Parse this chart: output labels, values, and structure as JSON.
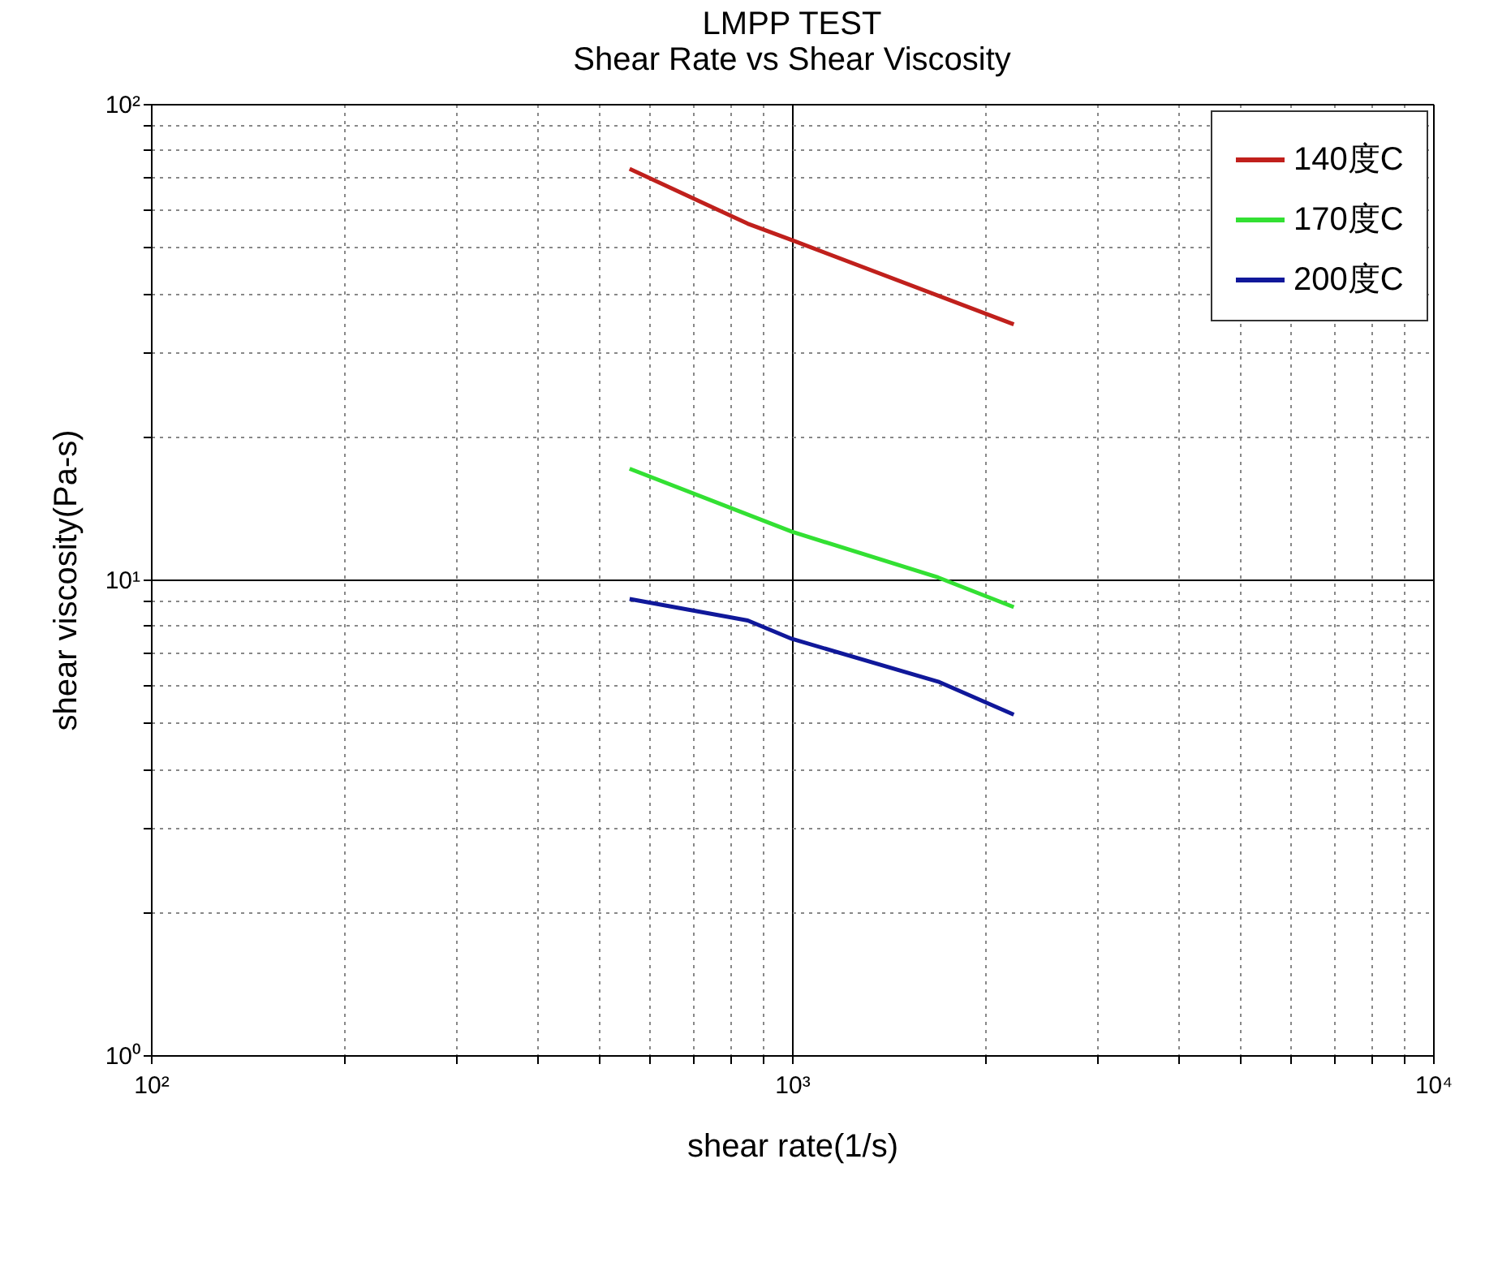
{
  "chart_data": {
    "type": "line",
    "title": [
      "LMPP TEST",
      "Shear Rate vs Shear Viscosity"
    ],
    "xlabel": "shear rate(1/s)",
    "ylabel": "shear viscosity(Pa-s)",
    "log": "xy",
    "grid": true,
    "legend": "top right",
    "line_style": "solid",
    "marker": "none",
    "xlim": [
      100,
      10000
    ],
    "ylim": [
      1,
      100
    ],
    "xticks": [
      {
        "value": 100,
        "label": "10²"
      },
      {
        "value": 200,
        "label": null
      },
      {
        "value": 300,
        "label": null
      },
      {
        "value": 400,
        "label": null
      },
      {
        "value": 500,
        "label": null
      },
      {
        "value": 600,
        "label": null
      },
      {
        "value": 700,
        "label": null
      },
      {
        "value": 800,
        "label": null
      },
      {
        "value": 900,
        "label": null
      },
      {
        "value": 1000,
        "label": "10³"
      },
      {
        "value": 2000,
        "label": null
      },
      {
        "value": 3000,
        "label": null
      },
      {
        "value": 4000,
        "label": null
      },
      {
        "value": 5000,
        "label": null
      },
      {
        "value": 6000,
        "label": null
      },
      {
        "value": 7000,
        "label": null
      },
      {
        "value": 8000,
        "label": null
      },
      {
        "value": 9000,
        "label": null
      },
      {
        "value": 10000,
        "label": "10⁴"
      }
    ],
    "yticks": [
      {
        "value": 1,
        "label": "10⁰"
      },
      {
        "value": 2,
        "label": null
      },
      {
        "value": 3,
        "label": null
      },
      {
        "value": 4,
        "label": null
      },
      {
        "value": 5,
        "label": null
      },
      {
        "value": 6,
        "label": null
      },
      {
        "value": 7,
        "label": null
      },
      {
        "value": 8,
        "label": null
      },
      {
        "value": 9,
        "label": null
      },
      {
        "value": 10,
        "label": "10¹"
      },
      {
        "value": 20,
        "label": null
      },
      {
        "value": 30,
        "label": null
      },
      {
        "value": 40,
        "label": null
      },
      {
        "value": 50,
        "label": null
      },
      {
        "value": 60,
        "label": null
      },
      {
        "value": 70,
        "label": null
      },
      {
        "value": 80,
        "label": null
      },
      {
        "value": 90,
        "label": null
      },
      {
        "value": 100,
        "label": "10²"
      }
    ],
    "series": [
      {
        "name": "140度C",
        "color": "#c0201c",
        "x": [
          558,
          853,
          1000,
          2218
        ],
        "values": [
          73,
          56,
          51.7,
          34.4
        ]
      },
      {
        "name": "170度C",
        "color": "#33e033",
        "x": [
          558,
          1000,
          1690,
          2218
        ],
        "values": [
          17.1,
          12.6,
          10.1,
          8.75
        ]
      },
      {
        "name": "200度C",
        "color": "#10189a",
        "x": [
          558,
          853,
          1000,
          1690,
          2218
        ],
        "values": [
          9.1,
          8.2,
          7.5,
          6.1,
          5.2
        ]
      }
    ]
  }
}
